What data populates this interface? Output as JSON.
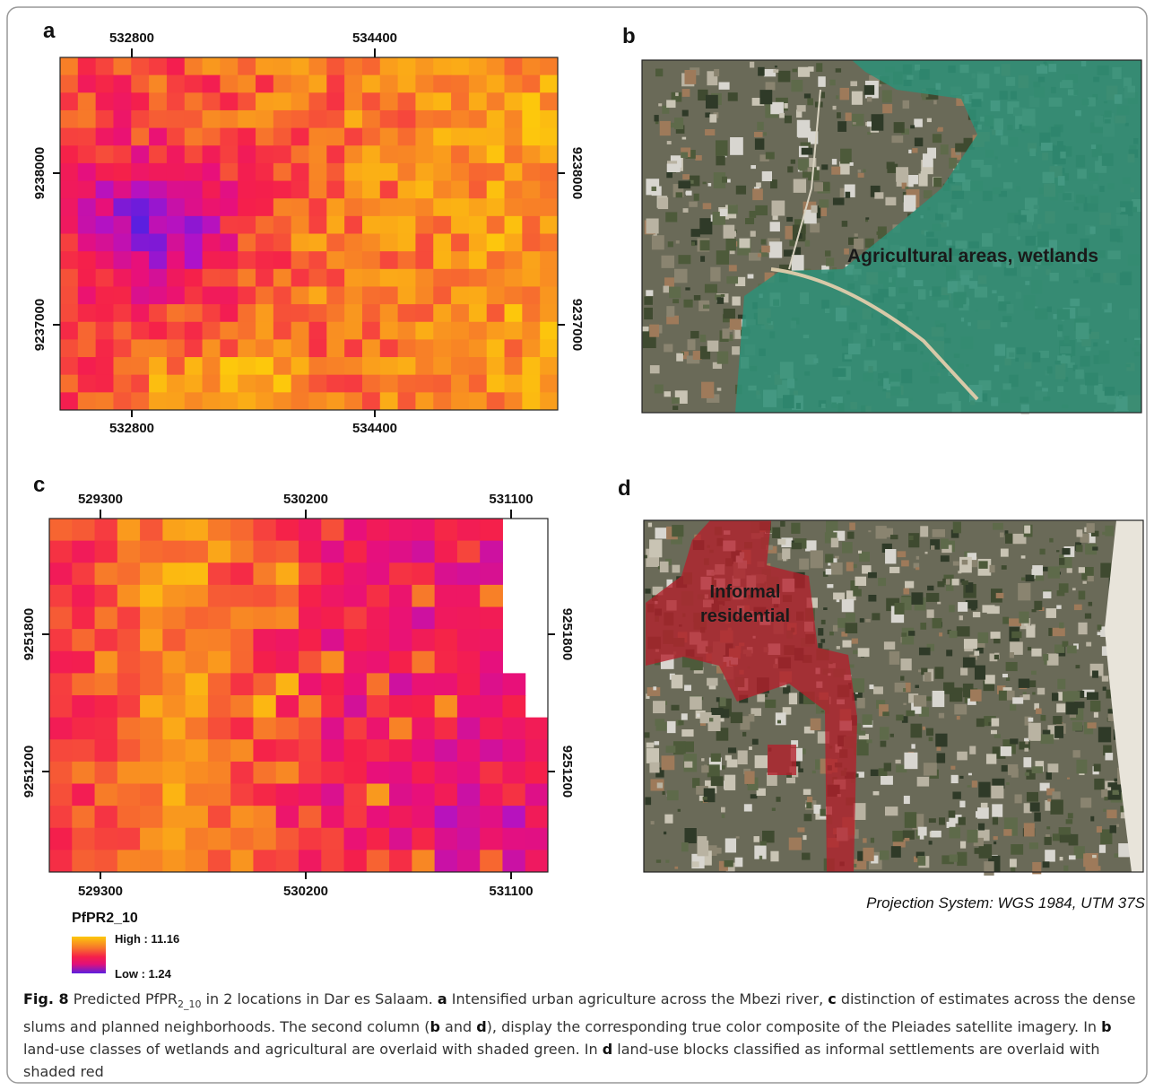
{
  "panels": [
    {
      "label": "a",
      "x_ticks": [
        532800,
        534400
      ],
      "y_ticks": [
        9238000,
        9237000
      ]
    },
    {
      "label": "b",
      "annotation": "Agricultural areas, wetlands"
    },
    {
      "label": "c",
      "x_ticks": [
        529300,
        530200,
        531100
      ],
      "y_ticks": [
        9251800,
        9251200
      ]
    },
    {
      "label": "d",
      "annotation": [
        "Informal",
        "residential"
      ]
    }
  ],
  "projection": "Projection System: WGS 1984, UTM 37S",
  "legend": {
    "title": "PfPR2_10",
    "high": "High : 11.16",
    "low": "Low : 1.24"
  },
  "caption": [
    {
      "text": "Fig. 8",
      "style": "bold"
    },
    {
      "text": " Predicted PfPR",
      "style": "normal"
    },
    {
      "text": "2_10",
      "style": "sub"
    },
    {
      "text": " in 2 locations in Dar es Salaam. ",
      "style": "normal"
    },
    {
      "text": "a",
      "style": "bold"
    },
    {
      "text": " Intensified urban agriculture across the Mbezi river, ",
      "style": "normal"
    },
    {
      "text": "c",
      "style": "bold"
    },
    {
      "text": " distinction of estimates across the dense slums and planned neighborhoods. The second column (",
      "style": "normal"
    },
    {
      "text": "b",
      "style": "bold"
    },
    {
      "text": " and ",
      "style": "normal"
    },
    {
      "text": "d",
      "style": "bold"
    },
    {
      "text": "), display the corresponding true color composite of the Pleiades satellite imagery. In ",
      "style": "normal"
    },
    {
      "text": "b",
      "style": "bold"
    },
    {
      "text": " land-use classes of wetlands and agricultural are overlaid with shaded green. In ",
      "style": "normal"
    },
    {
      "text": "d",
      "style": "bold"
    },
    {
      "text": " land-use blocks classified as informal settlements are overlaid with shaded red",
      "style": "normal"
    }
  ]
}
